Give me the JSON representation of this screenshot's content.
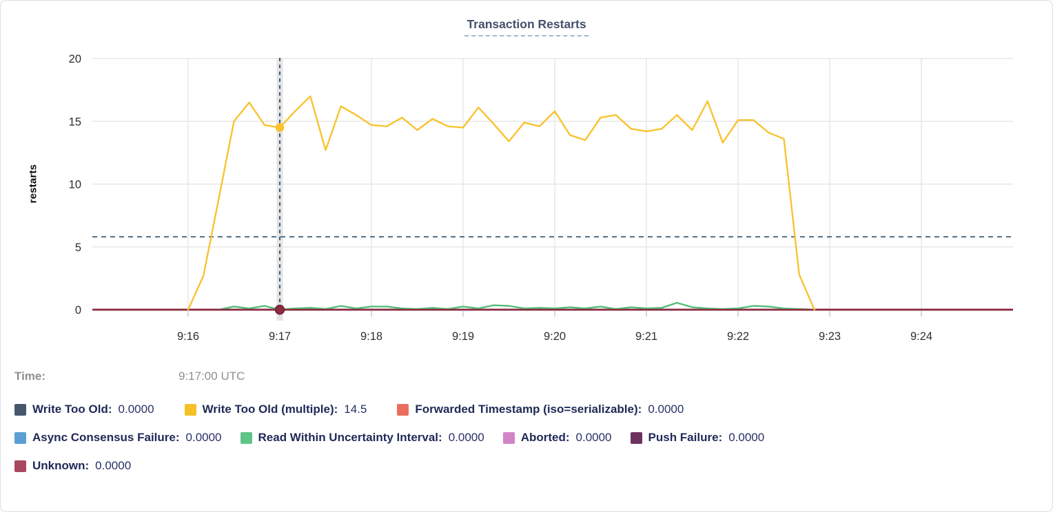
{
  "title": "Transaction Restarts",
  "time": {
    "label": "Time:",
    "value": "9:17:00 UTC"
  },
  "legend_rows": [
    [
      {
        "label": "Write Too Old:",
        "value": "0.0000",
        "color": "#47566d"
      },
      {
        "label": "Write Too Old (multiple):",
        "value": "14.5",
        "color": "#f5c125"
      },
      {
        "label": "Forwarded Timestamp (iso=serializable):",
        "value": "0.0000",
        "color": "#ea6e5e"
      }
    ],
    [
      {
        "label": "Async Consensus Failure:",
        "value": "0.0000",
        "color": "#5c9fd4"
      },
      {
        "label": "Read Within Uncertainty Interval:",
        "value": "0.0000",
        "color": "#5ec488"
      },
      {
        "label": "Aborted:",
        "value": "0.0000",
        "color": "#d284c6"
      },
      {
        "label": "Push Failure:",
        "value": "0.0000",
        "color": "#6e3160"
      }
    ],
    [
      {
        "label": "Unknown:",
        "value": "0.0000",
        "color": "#a8485f"
      }
    ]
  ],
  "chart_data": {
    "type": "line",
    "title": "Transaction Restarts",
    "xlabel": "",
    "ylabel": "restarts",
    "ylim": [
      0,
      20
    ],
    "y_ticks": [
      0,
      5,
      10,
      15,
      20
    ],
    "x_ticks": [
      "9:16",
      "9:17",
      "9:18",
      "9:19",
      "9:20",
      "9:21",
      "9:22",
      "9:23",
      "9:24"
    ],
    "x_range": [
      "9:15:00",
      "9:25:00"
    ],
    "grid": true,
    "legend_position": "bottom",
    "avg_hline": 5.8,
    "hover_vline": "9:17:00",
    "series": [
      {
        "name": "Write Too Old",
        "color": "#47566d",
        "constant": 0
      },
      {
        "name": "Forwarded Timestamp (iso=serializable)",
        "color": "#ea6e5e",
        "constant": 0
      },
      {
        "name": "Async Consensus Failure",
        "color": "#5c9fd4",
        "constant": 0
      },
      {
        "name": "Aborted",
        "color": "#d284c6",
        "constant": 0
      },
      {
        "name": "Push Failure",
        "color": "#6e3160",
        "constant": 0
      },
      {
        "name": "Read Within Uncertainty Interval",
        "color": "#53bd77",
        "points": [
          [
            "9:16:20",
            0
          ],
          [
            "9:16:30",
            0.25
          ],
          [
            "9:16:40",
            0.1
          ],
          [
            "9:16:50",
            0.3
          ],
          [
            "9:17:00",
            0
          ],
          [
            "9:17:10",
            0.1
          ],
          [
            "9:17:20",
            0.15
          ],
          [
            "9:17:30",
            0.05
          ],
          [
            "9:17:40",
            0.3
          ],
          [
            "9:17:50",
            0.1
          ],
          [
            "9:18:00",
            0.25
          ],
          [
            "9:18:10",
            0.25
          ],
          [
            "9:18:20",
            0.1
          ],
          [
            "9:18:30",
            0.05
          ],
          [
            "9:18:40",
            0.15
          ],
          [
            "9:18:50",
            0.05
          ],
          [
            "9:19:00",
            0.25
          ],
          [
            "9:19:10",
            0.1
          ],
          [
            "9:19:20",
            0.35
          ],
          [
            "9:19:30",
            0.3
          ],
          [
            "9:19:40",
            0.1
          ],
          [
            "9:19:50",
            0.15
          ],
          [
            "9:20:00",
            0.1
          ],
          [
            "9:20:10",
            0.2
          ],
          [
            "9:20:20",
            0.1
          ],
          [
            "9:20:30",
            0.25
          ],
          [
            "9:20:40",
            0.05
          ],
          [
            "9:20:50",
            0.2
          ],
          [
            "9:21:00",
            0.1
          ],
          [
            "9:21:10",
            0.15
          ],
          [
            "9:21:20",
            0.55
          ],
          [
            "9:21:30",
            0.2
          ],
          [
            "9:21:40",
            0.1
          ],
          [
            "9:21:50",
            0.05
          ],
          [
            "9:22:00",
            0.1
          ],
          [
            "9:22:10",
            0.3
          ],
          [
            "9:22:20",
            0.25
          ],
          [
            "9:22:30",
            0.1
          ],
          [
            "9:22:40",
            0.05
          ],
          [
            "9:22:50",
            0
          ]
        ]
      },
      {
        "name": "Unknown",
        "color": "#8e2b3e",
        "constant": 0
      },
      {
        "name": "Write Too Old (multiple)",
        "color": "#f9c32f",
        "points": [
          [
            "9:16:00",
            0
          ],
          [
            "9:16:10",
            2.7
          ],
          [
            "9:16:20",
            8.8
          ],
          [
            "9:16:30",
            15.0
          ],
          [
            "9:16:40",
            16.5
          ],
          [
            "9:16:50",
            14.7
          ],
          [
            "9:17:00",
            14.5
          ],
          [
            "9:17:10",
            15.8
          ],
          [
            "9:17:20",
            17.0
          ],
          [
            "9:17:30",
            12.7
          ],
          [
            "9:17:40",
            16.2
          ],
          [
            "9:17:50",
            15.5
          ],
          [
            "9:18:00",
            14.7
          ],
          [
            "9:18:10",
            14.6
          ],
          [
            "9:18:20",
            15.3
          ],
          [
            "9:18:30",
            14.3
          ],
          [
            "9:18:40",
            15.2
          ],
          [
            "9:18:50",
            14.6
          ],
          [
            "9:19:00",
            14.5
          ],
          [
            "9:19:10",
            16.1
          ],
          [
            "9:19:20",
            14.8
          ],
          [
            "9:19:30",
            13.4
          ],
          [
            "9:19:40",
            14.9
          ],
          [
            "9:19:50",
            14.6
          ],
          [
            "9:20:00",
            15.8
          ],
          [
            "9:20:10",
            13.9
          ],
          [
            "9:20:20",
            13.5
          ],
          [
            "9:20:30",
            15.3
          ],
          [
            "9:20:40",
            15.5
          ],
          [
            "9:20:50",
            14.4
          ],
          [
            "9:21:00",
            14.2
          ],
          [
            "9:21:10",
            14.4
          ],
          [
            "9:21:20",
            15.5
          ],
          [
            "9:21:30",
            14.3
          ],
          [
            "9:21:40",
            16.6
          ],
          [
            "9:21:50",
            13.3
          ],
          [
            "9:22:00",
            15.1
          ],
          [
            "9:22:10",
            15.1
          ],
          [
            "9:22:20",
            14.1
          ],
          [
            "9:22:30",
            13.6
          ],
          [
            "9:22:40",
            2.8
          ],
          [
            "9:22:50",
            0
          ]
        ]
      }
    ],
    "markers": [
      {
        "time": "9:17:00",
        "value": 14.5,
        "color": "#f9c32f",
        "r": 5.5
      },
      {
        "time": "9:17:00",
        "value": 0,
        "color": "#8e2b3e",
        "stroke": "#6d2034",
        "r": 6.5
      }
    ]
  },
  "style_colors": {
    "grid": "#e7e7e7",
    "axis_text": "#2e2e2e",
    "dashed_hline": "#4d6d85",
    "dashed_vline": "#3d5a74",
    "hover_band": "#e4e4e4",
    "tick_mark": "#d8d8d8"
  }
}
